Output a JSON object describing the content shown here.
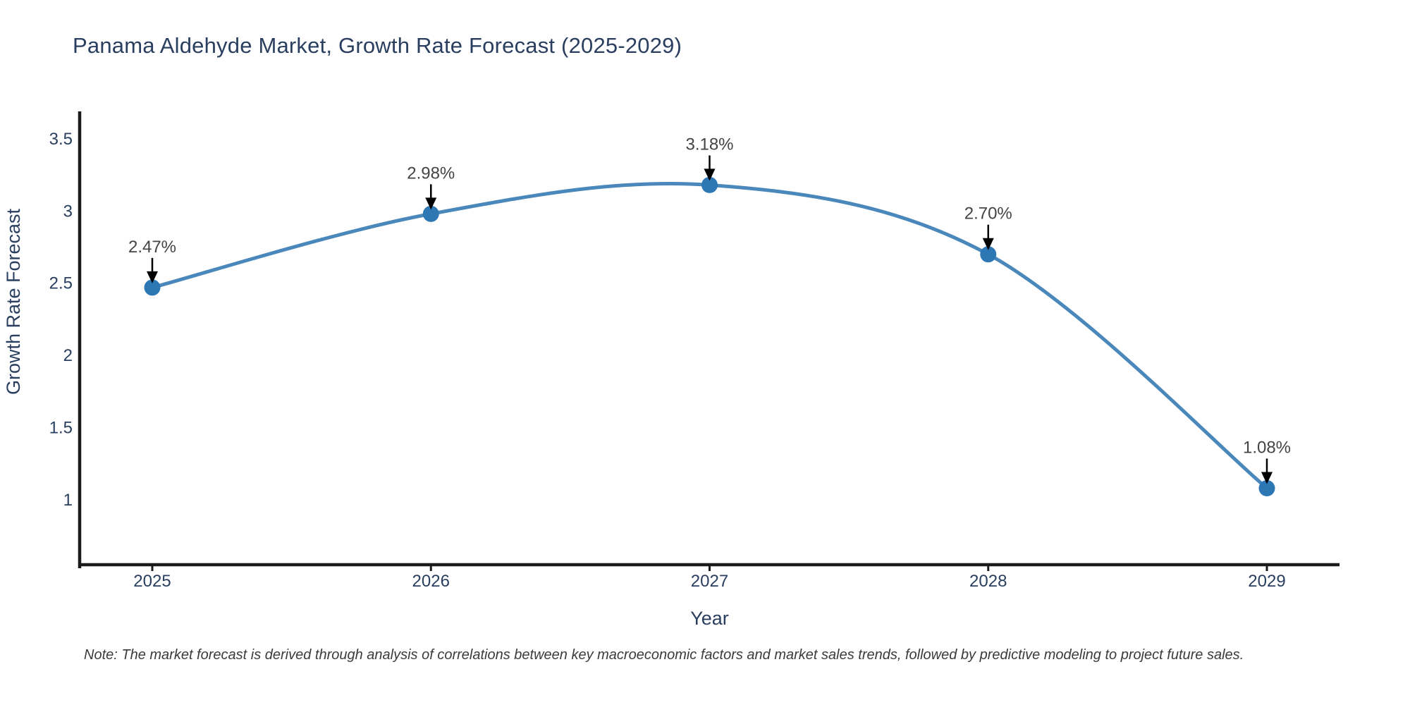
{
  "title": "Panama Aldehyde Market, Growth Rate Forecast (2025-2029)",
  "note": "Note: The market forecast is derived through analysis of correlations between key macroeconomic factors and market sales trends, followed by predictive modeling to project future sales.",
  "chart_data": {
    "type": "line",
    "title": "Panama Aldehyde Market, Growth Rate Forecast (2025-2029)",
    "x": [
      2025,
      2026,
      2027,
      2028,
      2029
    ],
    "y": [
      2.47,
      2.98,
      3.18,
      2.7,
      1.08
    ],
    "point_labels": [
      "2.47%",
      "2.98%",
      "3.18%",
      "2.70%",
      "1.08%"
    ],
    "xlabel": "Year",
    "ylabel": "Growth Rate Forecast",
    "xticks": [
      "2025",
      "2026",
      "2027",
      "2028",
      "2029"
    ],
    "yticks": [
      3.5,
      3,
      2.5,
      2,
      1.5,
      1
    ],
    "ylim": [
      0.55,
      3.69
    ],
    "line_shape": "spline",
    "grid": false,
    "legend_position": "none",
    "annotations_arrow": "down",
    "colors": {
      "line": "#4a87bb",
      "marker": "#2e77b5",
      "axis": "#1a1a1a",
      "axis_text": "#2a3f5f",
      "annotation_text": "#444444",
      "arrow": "#000000",
      "background": "#ffffff"
    }
  }
}
